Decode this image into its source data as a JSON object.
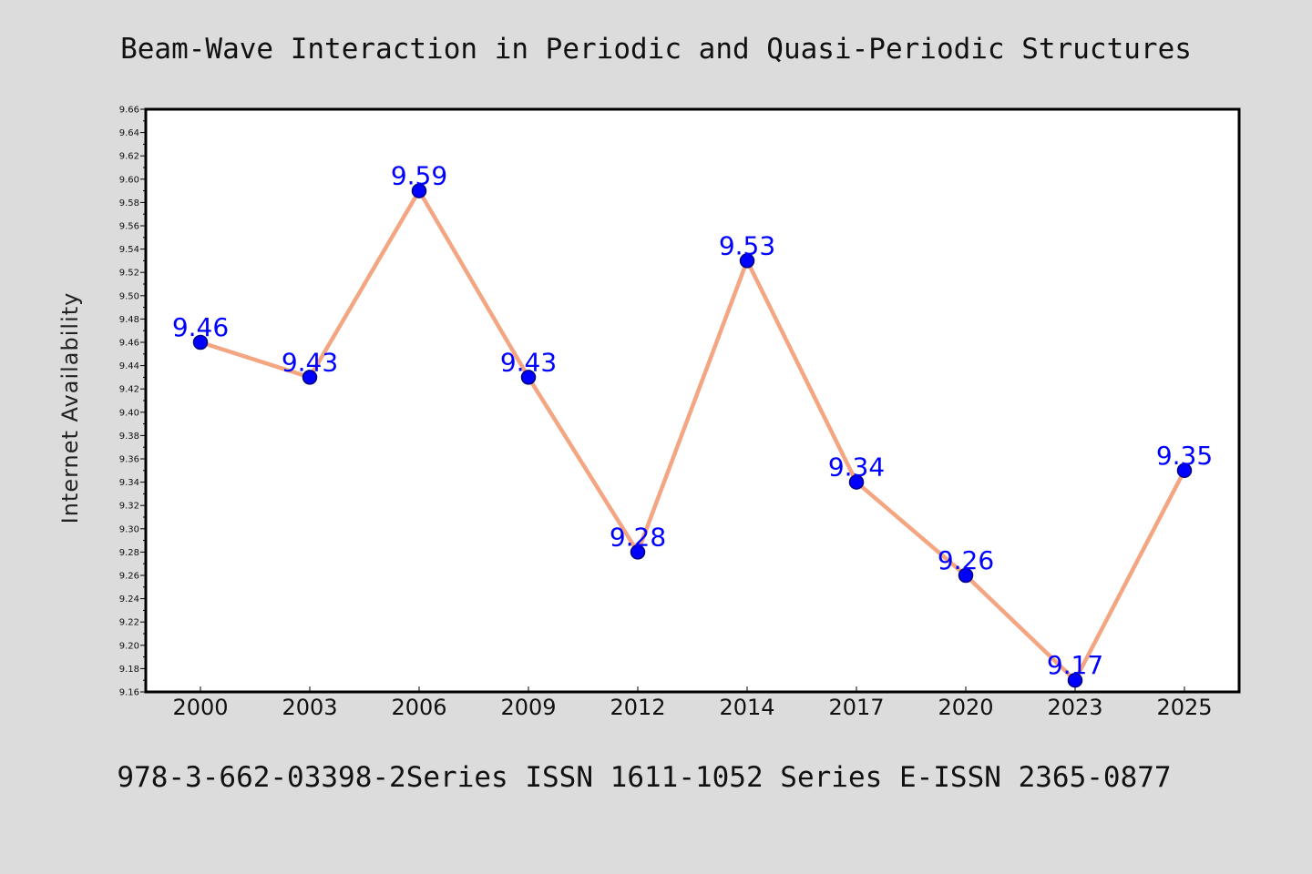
{
  "colors": {
    "background": "#dcdcdc",
    "plot_background": "#ffffff",
    "line": "#f4a582",
    "marker_fill": "#0000ff",
    "marker_edge": "#000080",
    "data_label": "#0000ff",
    "axis": "#000000"
  },
  "title": "Beam-Wave Interaction in Periodic and Quasi-Periodic Structures",
  "footer": "978-3-662-03398-2Series ISSN 1611-1052 Series E-ISSN 2365-0877",
  "chart_data": {
    "type": "line",
    "title": "Beam-Wave Interaction in Periodic and Quasi-Periodic Structures",
    "xlabel": "",
    "ylabel": "Internet Availability",
    "categories": [
      "2000",
      "2003",
      "2006",
      "2009",
      "2012",
      "2014",
      "2017",
      "2020",
      "2023",
      "2025"
    ],
    "series": [
      {
        "values": [
          9.46,
          9.43,
          9.59,
          9.43,
          9.28,
          9.53,
          9.34,
          9.26,
          9.17,
          9.35
        ]
      }
    ],
    "data_labels": [
      "9.46",
      "9.43",
      "9.59",
      "9.43",
      "9.28",
      "9.53",
      "9.34",
      "9.26",
      "9.17",
      "9.35"
    ],
    "ylim": [
      9.16,
      9.66
    ],
    "yticks": [
      "9.16",
      "9.18",
      "9.20",
      "9.22",
      "9.24",
      "9.26",
      "9.28",
      "9.30",
      "9.32",
      "9.34",
      "9.36",
      "9.38",
      "9.40",
      "9.42",
      "9.44",
      "9.46",
      "9.48",
      "9.50",
      "9.52",
      "9.54",
      "9.56",
      "9.58",
      "9.60",
      "9.62",
      "9.64",
      "9.66"
    ],
    "minor_ticks": true,
    "grid": false,
    "legend": "none"
  }
}
